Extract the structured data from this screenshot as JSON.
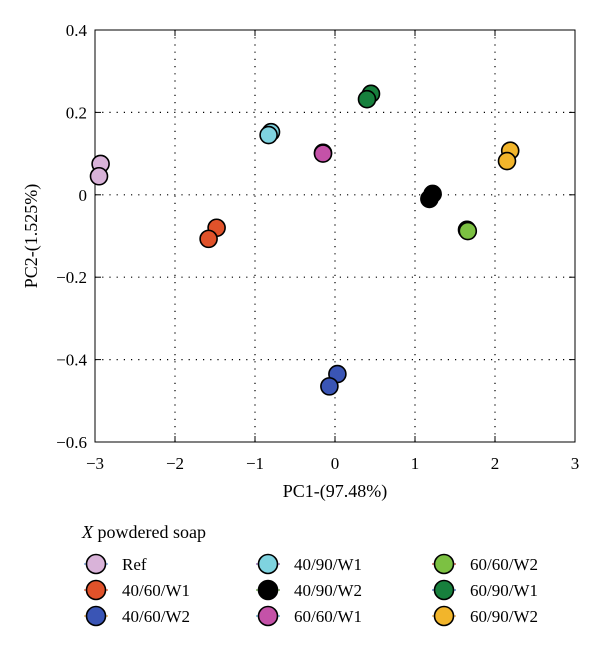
{
  "chart_data": {
    "type": "scatter",
    "title": "",
    "xlabel": "PC1-(97.48%)",
    "ylabel": "PC2-(1.525%)",
    "xlim": [
      -3,
      3
    ],
    "ylim": [
      -0.6,
      0.4
    ],
    "xticks": [
      -3,
      -2,
      -1,
      0,
      1,
      2,
      3
    ],
    "yticks": [
      0.4,
      0.2,
      0,
      -0.2,
      -0.4,
      -0.6
    ],
    "xtick_labels": [
      "−3",
      "−2",
      "−1",
      "0",
      "1",
      "2",
      "3"
    ],
    "ytick_labels": [
      "0.4",
      "0.2",
      "0",
      "−0.2",
      "−0.4",
      "−0.6"
    ],
    "grid": true,
    "legend": {
      "title_italic": "X",
      "title_rest": " powdered soap",
      "placement": "below",
      "columns": 3
    },
    "series": [
      {
        "name": "Ref",
        "color": "#d9b3d9",
        "line_color": "#5b8fd8",
        "points": [
          {
            "x": -2.93,
            "y": 0.075
          },
          {
            "x": -2.95,
            "y": 0.045
          }
        ]
      },
      {
        "name": "40/60/W1",
        "color": "#e0522a",
        "line_color": "#e0522a",
        "points": [
          {
            "x": -1.48,
            "y": -0.08
          },
          {
            "x": -1.58,
            "y": -0.107
          }
        ]
      },
      {
        "name": "40/60/W2",
        "color": "#3a55b5",
        "line_color": "#e8a53a",
        "points": [
          {
            "x": 0.03,
            "y": -0.435
          },
          {
            "x": -0.07,
            "y": -0.465
          }
        ]
      },
      {
        "name": "40/90/W1",
        "color": "#7fd3e0",
        "line_color": "#8a5cb0",
        "points": [
          {
            "x": -0.8,
            "y": 0.152
          },
          {
            "x": -0.83,
            "y": 0.145
          }
        ]
      },
      {
        "name": "40/90/W2",
        "color": "#000000",
        "line_color": "#5a9a3a",
        "points": [
          {
            "x": 1.22,
            "y": 0.002
          },
          {
            "x": 1.18,
            "y": -0.01
          }
        ]
      },
      {
        "name": "60/60/W1",
        "color": "#c452a8",
        "line_color": "#4aa0c8",
        "points": [
          {
            "x": -0.15,
            "y": 0.102
          },
          {
            "x": -0.15,
            "y": 0.1
          }
        ]
      },
      {
        "name": "60/60/W2",
        "color": "#7cc142",
        "line_color": "#c0392b",
        "points": [
          {
            "x": 1.65,
            "y": -0.085
          },
          {
            "x": 1.66,
            "y": -0.088
          }
        ]
      },
      {
        "name": "60/90/W1",
        "color": "#17803d",
        "line_color": "#3a6fc0",
        "points": [
          {
            "x": 0.45,
            "y": 0.245
          },
          {
            "x": 0.4,
            "y": 0.232
          }
        ]
      },
      {
        "name": "60/90/W2",
        "color": "#f2b52b",
        "line_color": "#e8a53a",
        "points": [
          {
            "x": 2.19,
            "y": 0.107
          },
          {
            "x": 2.15,
            "y": 0.082
          }
        ]
      }
    ]
  }
}
